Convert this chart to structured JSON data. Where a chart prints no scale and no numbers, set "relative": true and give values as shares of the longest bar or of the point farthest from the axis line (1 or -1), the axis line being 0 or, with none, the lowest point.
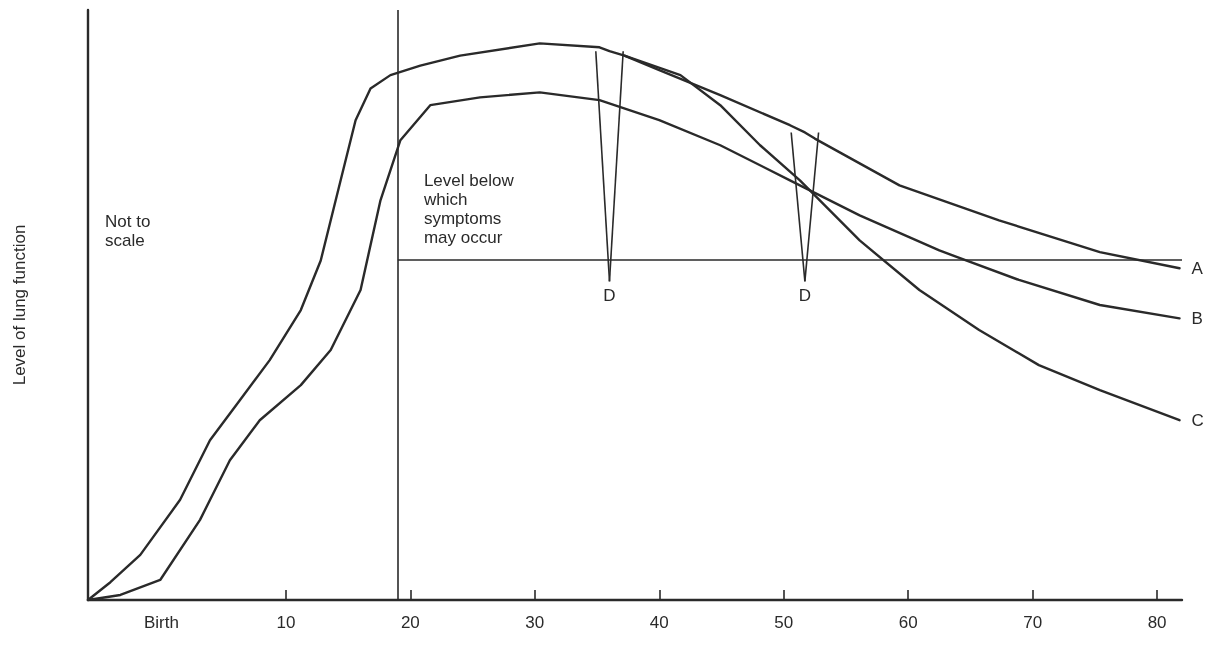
{
  "chart_data": {
    "type": "line",
    "relative": true,
    "ylabel": "Level of lung function",
    "xlim": [
      -5.9,
      82
    ],
    "xticks": [
      {
        "value": 0,
        "label": "Birth"
      },
      10,
      20,
      30,
      40,
      50,
      60,
      70,
      80
    ],
    "series": [
      {
        "name": "A",
        "color": "#2a2a2a",
        "x": [
          -5.9,
          -4.1,
          -1.7,
          1.5,
          3.9,
          6.3,
          8.7,
          11.2,
          12.8,
          14.4,
          15.6,
          16.8,
          18.4,
          20.8,
          24.0,
          30.4,
          35.2,
          36.0,
          37.2,
          40.0,
          44.9,
          50.5,
          51.7,
          52.5,
          59.3,
          67.3,
          75.4,
          81.8
        ],
        "values": [
          0,
          0.032,
          0.081,
          0.18,
          0.287,
          0.359,
          0.431,
          0.521,
          0.61,
          0.754,
          0.862,
          0.919,
          0.943,
          0.96,
          0.978,
          1,
          0.993,
          0.986,
          0.978,
          0.952,
          0.907,
          0.853,
          0.84,
          0.829,
          0.745,
          0.682,
          0.625,
          0.596
        ]
      },
      {
        "name": "B",
        "color": "#2a2a2a",
        "x": [
          -5.9,
          -3.3,
          -0.1,
          3.1,
          5.5,
          7.9,
          11.2,
          13.6,
          16.0,
          17.6,
          19.2,
          21.6,
          25.6,
          30.4,
          35.2,
          40.0,
          44.9,
          50.5,
          56.1,
          62.5,
          68.9,
          75.4,
          81.8
        ],
        "values": [
          0,
          0.009,
          0.036,
          0.144,
          0.251,
          0.323,
          0.386,
          0.449,
          0.557,
          0.718,
          0.826,
          0.889,
          0.903,
          0.912,
          0.898,
          0.862,
          0.817,
          0.754,
          0.691,
          0.628,
          0.575,
          0.53,
          0.506
        ]
      },
      {
        "name": "C",
        "color": "#2a2a2a",
        "x": [
          37.2,
          41.7,
          44.9,
          48.1,
          51.3,
          56.1,
          60.9,
          65.7,
          70.5,
          75.4,
          81.8
        ],
        "values": [
          0.978,
          0.943,
          0.889,
          0.817,
          0.754,
          0.646,
          0.557,
          0.485,
          0.422,
          0.377,
          0.323
        ]
      }
    ],
    "ref_lines": [
      {
        "axis": "x",
        "value": 19
      },
      {
        "axis": "y",
        "value": 0.612,
        "label": "Level below which symptoms may occur"
      }
    ],
    "annotations": [
      "Not to scale",
      {
        "text": "D",
        "x": 36.0,
        "y": 0.612
      },
      {
        "text": "D",
        "x": 51.7,
        "y": 0.612
      }
    ],
    "marker": "none",
    "line_style": "solid",
    "grid": false,
    "legend": false
  }
}
